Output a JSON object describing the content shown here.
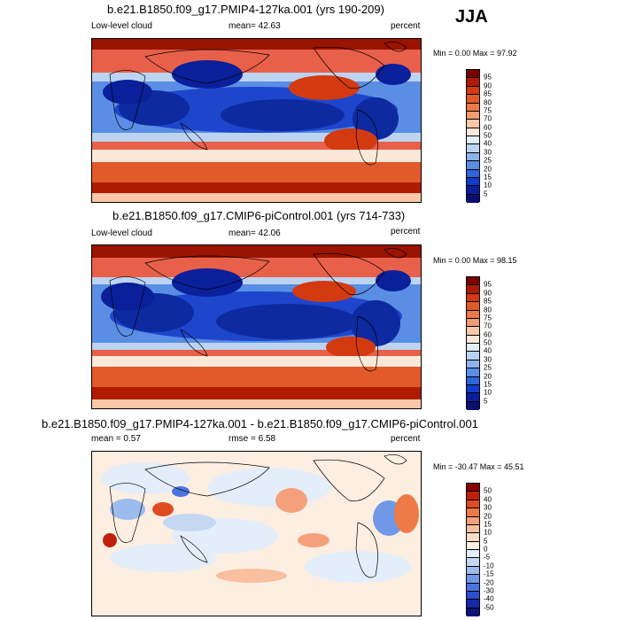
{
  "season": "JJA",
  "panels": [
    {
      "title": "b.e21.B1850.f09_g17.PMIP4-127ka.001 (yrs 190-209)",
      "left_label": "Low-level cloud",
      "mean_text": "mean=  42.63",
      "units": "percent",
      "minmax": "Min =   0.00 Max =  97.92",
      "colorbar": {
        "labels": [
          "95",
          "90",
          "85",
          "80",
          "75",
          "70",
          "60",
          "50",
          "40",
          "30",
          "25",
          "20",
          "15",
          "10",
          "5"
        ],
        "colors": [
          "#7a0000",
          "#b01a00",
          "#d43a10",
          "#e05a2a",
          "#ea7a48",
          "#f29a70",
          "#f8c8a8",
          "#fbe8d8",
          "#e0ecf8",
          "#b8d4f0",
          "#8cb4ec",
          "#5a8ee4",
          "#2e64dc",
          "#0e3ccc",
          "#0a1f9a",
          "#0a1070"
        ]
      }
    },
    {
      "title": "b.e21.B1850.f09_g17.CMIP6-piControl.001 (yrs 714-733)",
      "left_label": "Low-level cloud",
      "mean_text": "mean=  42.06",
      "units": "percent",
      "minmax": "Min =   0.00 Max =  98.15",
      "colorbar": {
        "labels": [
          "95",
          "90",
          "85",
          "80",
          "75",
          "70",
          "60",
          "50",
          "40",
          "30",
          "25",
          "20",
          "15",
          "10",
          "5"
        ],
        "colors": [
          "#7a0000",
          "#b01a00",
          "#d43a10",
          "#e05a2a",
          "#ea7a48",
          "#f29a70",
          "#f8c8a8",
          "#fbe8d8",
          "#e0ecf8",
          "#b8d4f0",
          "#8cb4ec",
          "#5a8ee4",
          "#2e64dc",
          "#0e3ccc",
          "#0a1f9a",
          "#0a1070"
        ]
      }
    },
    {
      "title": "b.e21.B1850.f09_g17.PMIP4-127ka.001 - b.e21.B1850.f09_g17.CMIP6-piControl.001",
      "left_label": "mean =   0.57",
      "mean_text": "rmse =   6.58",
      "units": "percent",
      "minmax": "Min = -30.47 Max =  45.51",
      "colorbar": {
        "labels": [
          "50",
          "40",
          "30",
          "20",
          "15",
          "10",
          "5",
          "0",
          "-5",
          "-10",
          "-15",
          "-20",
          "-30",
          "-40",
          "-50"
        ],
        "colors": [
          "#8a0000",
          "#c0200a",
          "#e04a20",
          "#ee7a48",
          "#f4a07a",
          "#f8c0a0",
          "#fbdcc8",
          "#fdeee2",
          "#e4eefa",
          "#c4d8f4",
          "#9cbcee",
          "#7098e6",
          "#4a74de",
          "#2a4ed0",
          "#1428a8",
          "#0a1478"
        ]
      }
    }
  ]
}
